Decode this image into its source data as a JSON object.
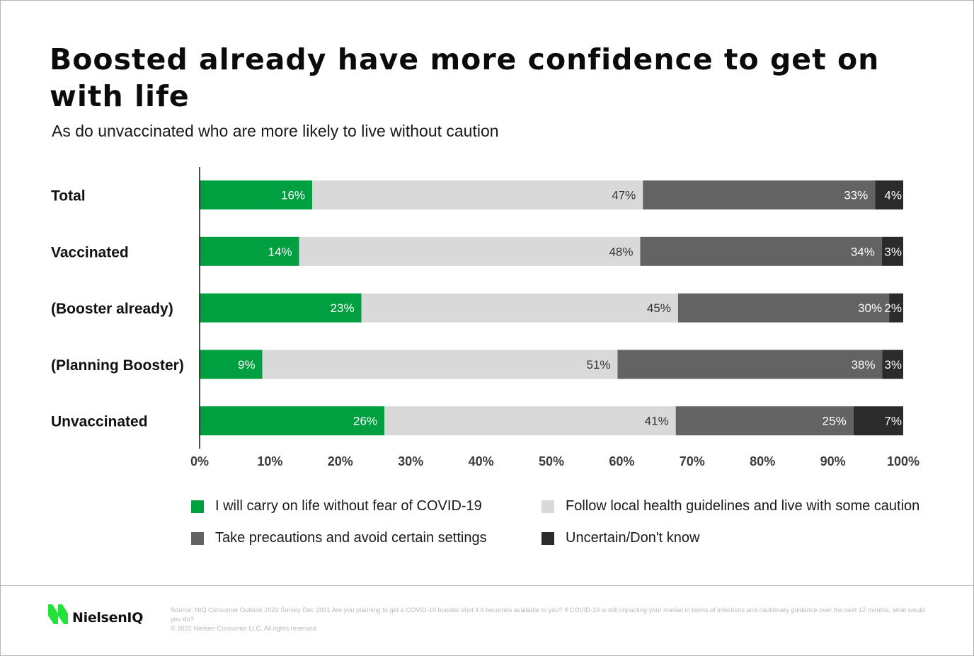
{
  "title": "Boosted already have more confidence to get on with life",
  "subtitle": "As do unvaccinated who are more likely to live without caution",
  "chart_data": {
    "type": "bar",
    "orientation": "horizontal",
    "stacked": true,
    "title": "Boosted already have more confidence to get on with life",
    "subtitle": "As do unvaccinated who are more likely to live without caution",
    "xlabel": "",
    "ylabel": "",
    "xlim": [
      0,
      100
    ],
    "x_ticks": [
      "0%",
      "10%",
      "20%",
      "30%",
      "40%",
      "50%",
      "60%",
      "70%",
      "80%",
      "90%",
      "100%"
    ],
    "grid": false,
    "legend_position": "bottom",
    "categories": [
      "Total",
      "Vaccinated",
      "(Booster already)",
      "(Planning Booster)",
      "Unvaccinated"
    ],
    "series": [
      {
        "name": "I will carry on life without fear of COVID-19",
        "color": "#00a040",
        "label_color": "#ffffff",
        "values": [
          16,
          14,
          23,
          9,
          26
        ]
      },
      {
        "name": "Follow local health guidelines and live with some caution",
        "color": "#d9d9d9",
        "label_color": "#333333",
        "values": [
          47,
          48,
          45,
          51,
          41
        ]
      },
      {
        "name": "Take precautions and avoid certain settings",
        "color": "#636363",
        "label_color": "#ffffff",
        "values": [
          33,
          34,
          30,
          38,
          25
        ]
      },
      {
        "name": "Uncertain/Don't know",
        "color": "#2b2b2b",
        "label_color": "#ffffff",
        "values": [
          4,
          3,
          2,
          3,
          7
        ]
      }
    ],
    "value_suffix": "%"
  },
  "legend": {
    "items": [
      {
        "label": "I will carry on life without fear of COVID-19",
        "color": "#00a040"
      },
      {
        "label": "Follow local health guidelines and live with some caution",
        "color": "#d9d9d9"
      },
      {
        "label": "Take precautions and avoid certain settings",
        "color": "#636363"
      },
      {
        "label": "Uncertain/Don't know",
        "color": "#2b2b2b"
      }
    ]
  },
  "footer": {
    "brand": "NielsenIQ",
    "brand_color": "#23e23a",
    "source": "Source: NIQ Consumer Outlook 2022 Survey Dec 2021 Are you planning to get a COVID-19 booster shot if it becomes available to you? If COVID-19 is still impacting your market in terms of infections and cautionary guidance over the next 12 months, what would you do?",
    "copyright": "© 2022 Nielsen Consumer LLC. All rights reserved."
  }
}
